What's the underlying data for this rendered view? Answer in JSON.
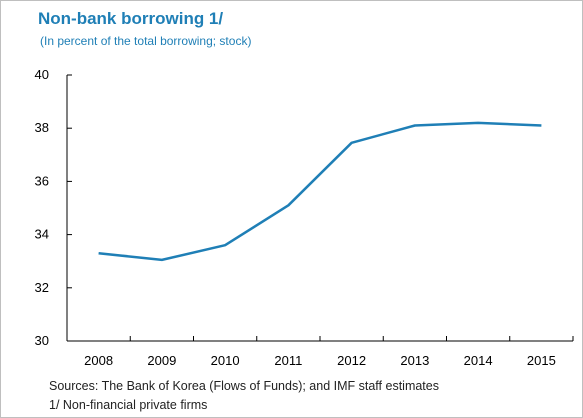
{
  "chart_data": {
    "type": "line",
    "title": "Non-bank borrowing 1/",
    "subtitle": "(In percent of the total borrowing; stock)",
    "x": [
      "2008",
      "2009",
      "2010",
      "2011",
      "2012",
      "2013",
      "2014",
      "2015"
    ],
    "series": [
      {
        "values": [
          33.3,
          33.05,
          33.6,
          35.1,
          37.45,
          38.1,
          38.2,
          38.1
        ]
      }
    ],
    "ylim": [
      30,
      40
    ],
    "yticks": [
      30,
      32,
      34,
      36,
      38,
      40
    ],
    "grid": false,
    "legend": "none",
    "line_color": "#1f7fb6"
  },
  "notes": {
    "sources": "Sources: The Bank of Korea (Flows of Funds); and IMF staff estimates",
    "footnote": "1/ Non-financial private firms"
  }
}
